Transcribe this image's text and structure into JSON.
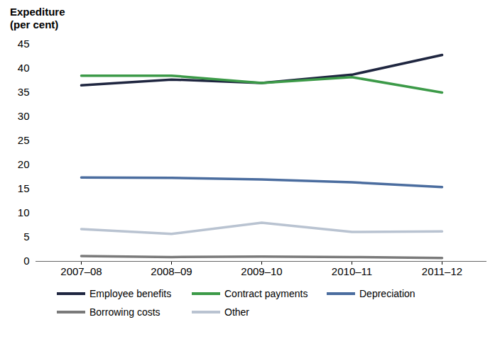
{
  "chart_data": {
    "type": "line",
    "y_label": "Expediture\n(per cent)",
    "categories": [
      "2007–08",
      "2008–09",
      "2009–10",
      "2010–11",
      "2011–12"
    ],
    "series": [
      {
        "name": "Employee benefits",
        "color": "#1f2640",
        "values": [
          36.5,
          37.7,
          37.0,
          38.7,
          42.8
        ]
      },
      {
        "name": "Contract payments",
        "color": "#3c9a48",
        "values": [
          38.5,
          38.5,
          37.0,
          38.2,
          35.0
        ]
      },
      {
        "name": "Depreciation",
        "color": "#4b6d9f",
        "values": [
          17.4,
          17.3,
          17.0,
          16.4,
          15.4
        ]
      },
      {
        "name": "Borrowing costs",
        "color": "#7a7a7a",
        "values": [
          1.1,
          0.9,
          1.0,
          0.9,
          0.7
        ]
      },
      {
        "name": "Other",
        "color": "#b9c3d1",
        "values": [
          6.7,
          5.7,
          8.0,
          6.1,
          6.2
        ]
      }
    ],
    "ylim": [
      0,
      45
    ],
    "yticks": [
      0,
      5,
      10,
      15,
      20,
      25,
      30,
      35,
      40,
      45
    ],
    "grid": false,
    "legend": "bottom"
  }
}
